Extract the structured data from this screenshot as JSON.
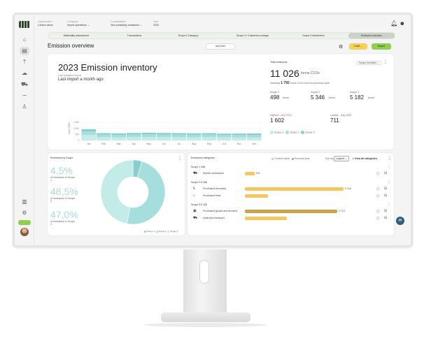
{
  "topbar": {
    "crumbs": [
      {
        "label": "Organization",
        "value": "Carbon demo"
      },
      {
        "label": "Company",
        "value": "Import operations ⌄"
      },
      {
        "label": "Consolidation",
        "value": "Non-subsidiary emissions ⌄"
      },
      {
        "label": "Year",
        "value": "2023"
      }
    ]
  },
  "tabs": [
    "Materiality assessment",
    "Transactions",
    "Scope 3 Category",
    "Scope 3 / Customers change",
    "Scope 3 distribution",
    "Emission overview"
  ],
  "page": {
    "title": "Emission overview",
    "filter_label": "Add filter",
    "draft_label": "Draft ⌄",
    "export_label": "Export"
  },
  "inventory": {
    "title": "2023 Emission inventory",
    "subtitle": "Last activated import",
    "last_import": "Last import a month ago",
    "chart_data": {
      "type": "bar",
      "categories": [
        "Jan",
        "Feb",
        "Mar",
        "Apr",
        "May",
        "Jun",
        "Jul",
        "Aug",
        "Sep",
        "Oct",
        "Nov",
        "Dec"
      ],
      "ylabel": "tonne CO2e",
      "yticks": [
        "1 500",
        "1 000",
        "500",
        "0"
      ],
      "ylim": [
        0,
        1500
      ],
      "series": [
        {
          "name": "Scope 1",
          "values": [
            750,
            480,
            430,
            450,
            470,
            450,
            440,
            440,
            450,
            420,
            430,
            430
          ],
          "color": "#c3ebe7"
        },
        {
          "name": "Scope 2",
          "values": [
            500,
            330,
            330,
            360,
            370,
            360,
            360,
            340,
            350,
            320,
            320,
            330
          ],
          "color": "#a6dedd"
        },
        {
          "name": "Scope 3",
          "values": [
            300,
            200,
            210,
            220,
            220,
            220,
            210,
            210,
            210,
            200,
            200,
            200
          ],
          "color": "#86cfcc"
        }
      ]
    }
  },
  "totals": {
    "label": "Total emissions",
    "selector": "Scope included ⌄",
    "value": "11 026",
    "unit": "tonne CO2e",
    "note_prefix": "including",
    "note_value": "1 792",
    "note_suffix": "tonne CO2e from the previous year",
    "scopes": [
      {
        "label": "Scope 1",
        "value": "498",
        "unit": "tonne"
      },
      {
        "label": "Scope 2",
        "value": "5 346",
        "unit": "tonne"
      },
      {
        "label": "Scope 3",
        "value": "5 182",
        "unit": "tonne"
      }
    ],
    "highest_label": "Highest - July 2023",
    "highest_value": "1 602",
    "lowest_label": "Lowest - July 2023",
    "lowest_value": "711",
    "legend": [
      "Scope 1",
      "Scope 2",
      "Scope 3"
    ]
  },
  "by_scope": {
    "title": "Emissions by Scope",
    "items": [
      {
        "pct": "4,5%",
        "label": "of emissions in Scope 1"
      },
      {
        "pct": "48,5%",
        "label": "of emissions in Scope 2"
      },
      {
        "pct": "47,0%",
        "label": "of emissions in Scope 3"
      }
    ],
    "chart_data": {
      "type": "pie",
      "labels": [
        "Scope 1",
        "Scope 2",
        "Scope 3"
      ],
      "values": [
        4.5,
        48.5,
        47.0
      ],
      "colors": [
        "#86cfcc",
        "#a6dedd",
        "#c3ebe7"
      ]
    },
    "legend": [
      "Scope 1",
      "Scope 2",
      "Scope 3"
    ]
  },
  "categories": {
    "title": "Emissions categories",
    "legend": [
      "Current value",
      "Previous year"
    ],
    "sort_label": "Sort by",
    "sort_value": "Largest ⌄",
    "view_all": "View all categories",
    "groups": [
      {
        "scope": "Scope 1",
        "total": "498",
        "rows": [
          {
            "icon": "car-icon",
            "name": "Mobile combustion",
            "value": "498",
            "max": "",
            "frac": 0.09,
            "color": "#f6c760"
          }
        ]
      },
      {
        "scope": "Scope 2",
        "total": "5 346",
        "rows": [
          {
            "icon": "bolt-icon",
            "name": "Purchased electricity",
            "value": "5 346",
            "max": "",
            "frac": 0.94,
            "color": "#f6c760"
          },
          {
            "icon": "factory-icon",
            "name": "Purchased heat",
            "value": "",
            "max": "",
            "frac": 0.22,
            "color": "#f6c760"
          }
        ]
      },
      {
        "scope": "Scope 3",
        "total": "5 182",
        "rows": [
          {
            "icon": "box-icon",
            "name": "Purchased goods and services",
            "value": "4 703",
            "max": "",
            "frac": 0.88,
            "color": "#c8a24c"
          },
          {
            "icon": "truck-icon",
            "name": "Upstream transport",
            "value": "",
            "max": "",
            "frac": 0.4,
            "color": "#f6c760"
          }
        ]
      }
    ]
  }
}
